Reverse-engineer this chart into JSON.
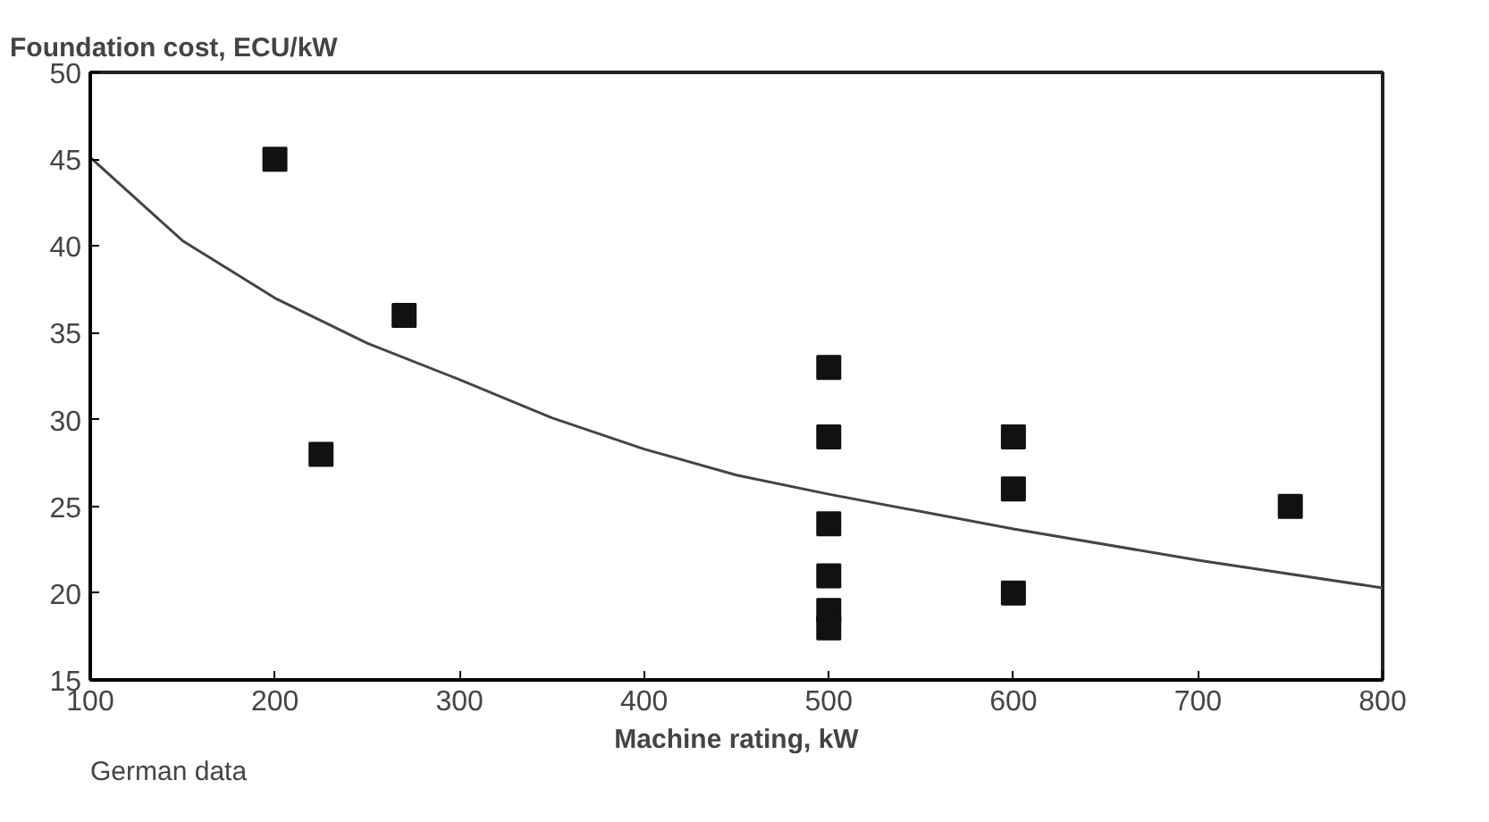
{
  "chart_data": {
    "type": "scatter",
    "title": "Foundation cost, ECU/kW",
    "xlabel": "Machine rating, kW",
    "annotations": [
      "German data"
    ],
    "xlim": [
      100,
      800
    ],
    "ylim": [
      15,
      50
    ],
    "xticks": [
      100,
      200,
      300,
      400,
      500,
      600,
      700,
      800
    ],
    "yticks": [
      15,
      20,
      25,
      30,
      35,
      40,
      45,
      50
    ],
    "grid": false,
    "series": [
      {
        "marker": "square",
        "color": "#111111",
        "x": [
          200,
          225,
          270,
          500,
          500,
          500,
          500,
          500,
          500,
          600,
          600,
          600,
          750
        ],
        "values": [
          45,
          28,
          36,
          33,
          29,
          24,
          21,
          19,
          18,
          29,
          26,
          20,
          25
        ]
      },
      {
        "type": "line",
        "marker": "none",
        "color": "#444444",
        "line_style": "solid",
        "x": [
          100,
          150,
          200,
          250,
          300,
          350,
          400,
          450,
          500,
          600,
          700,
          800
        ],
        "values": [
          45.1,
          40.3,
          37.0,
          34.4,
          32.3,
          30.1,
          28.3,
          26.8,
          25.7,
          23.7,
          21.9,
          20.3
        ]
      }
    ]
  }
}
